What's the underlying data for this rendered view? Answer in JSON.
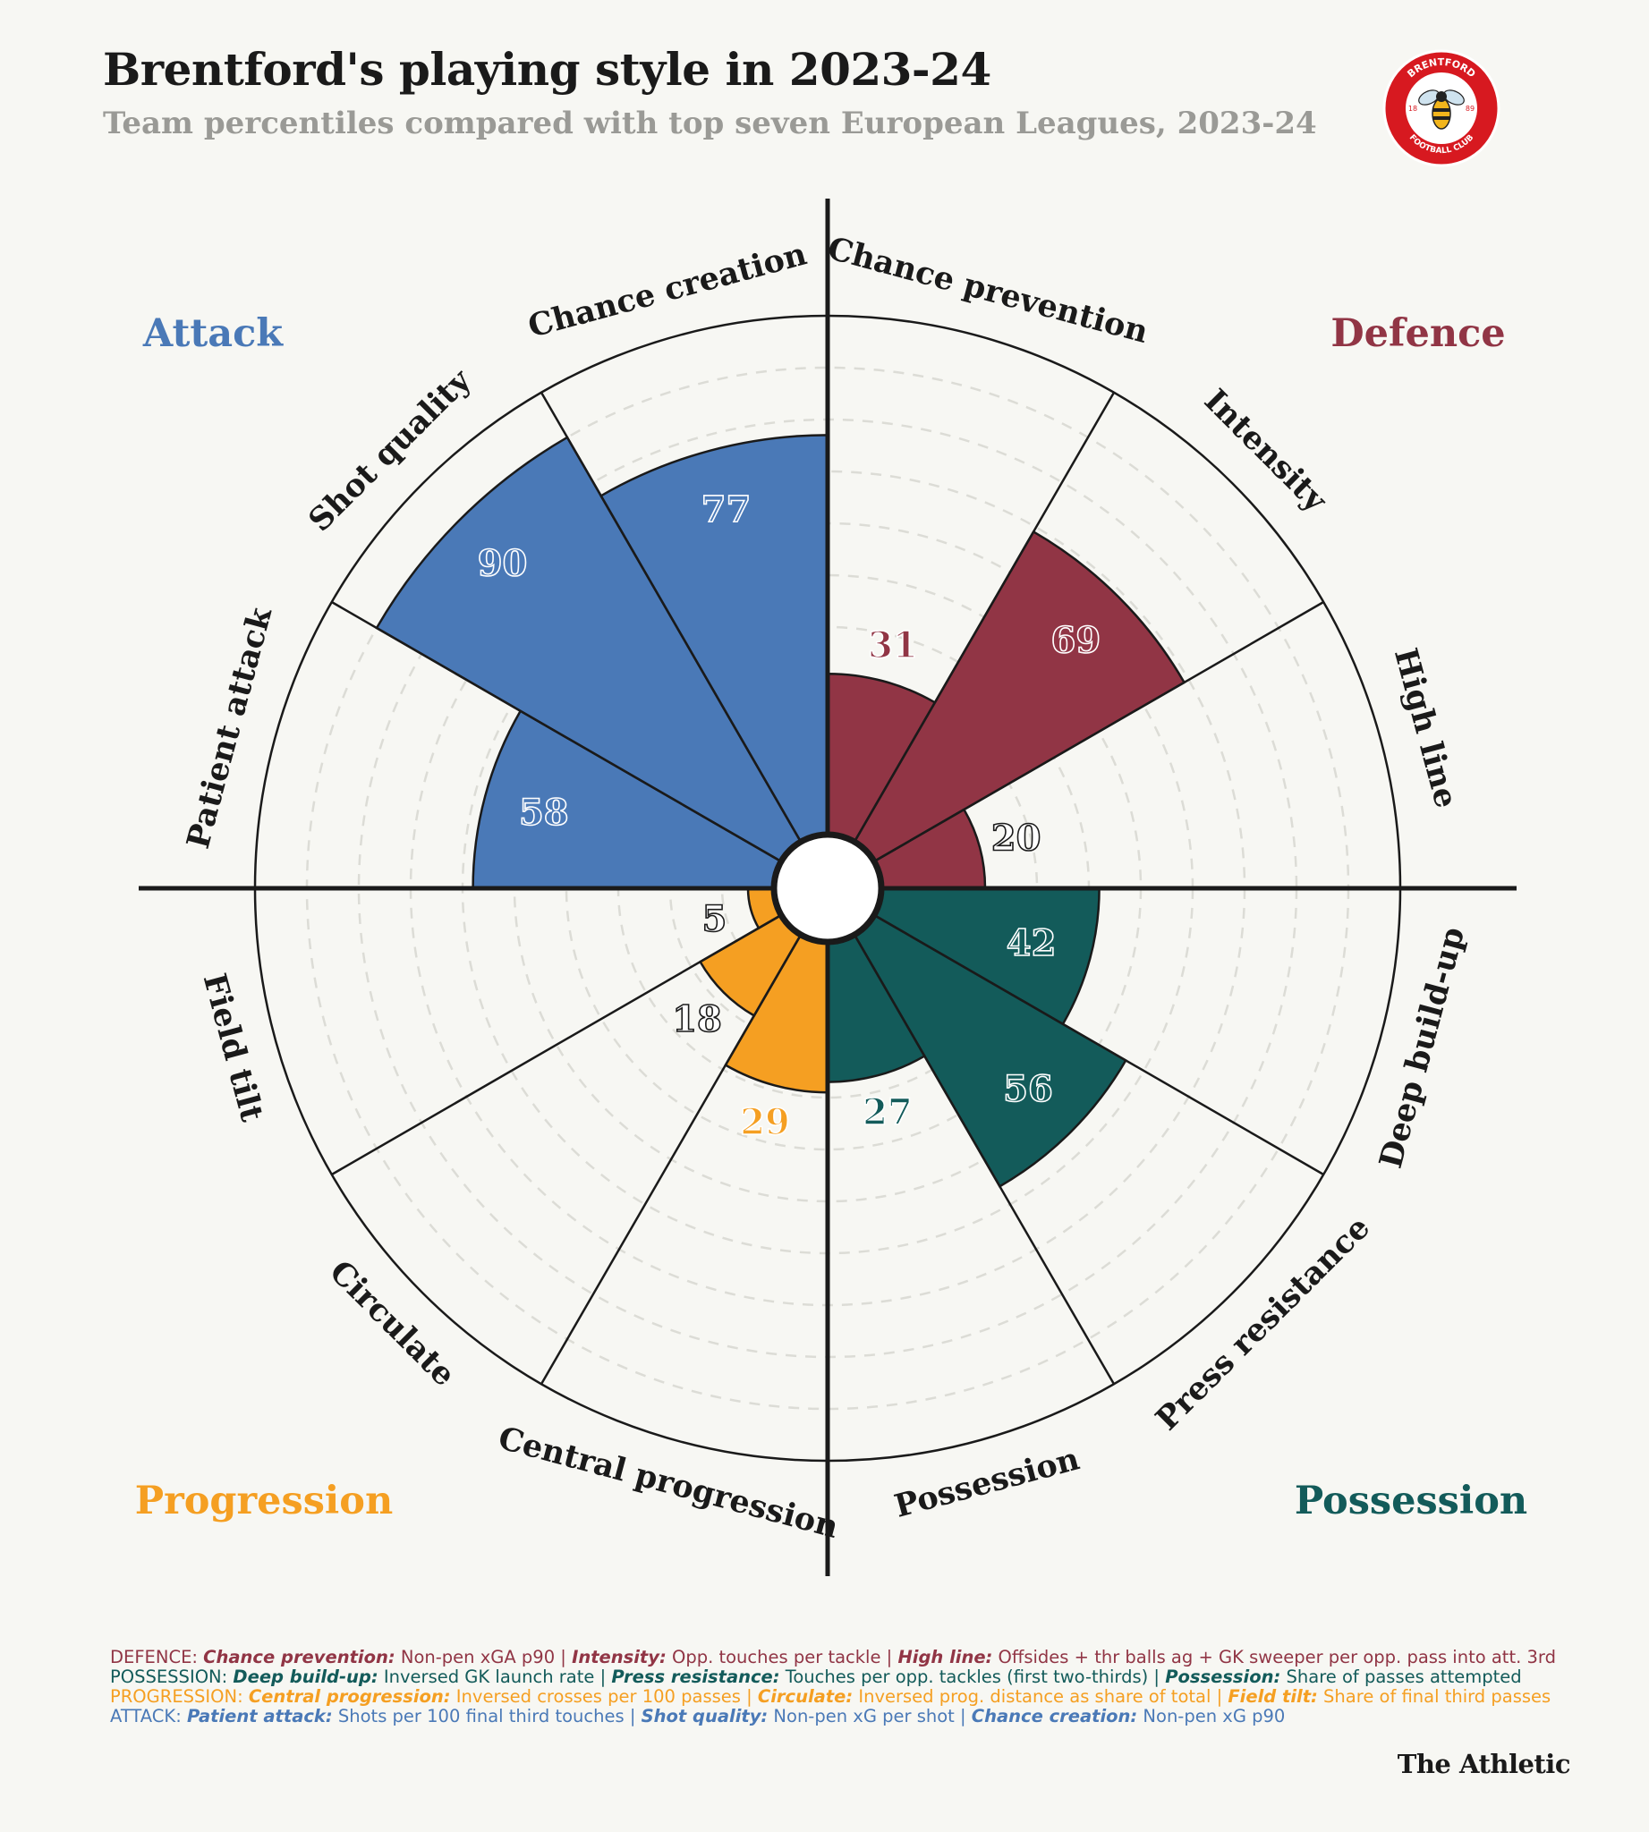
{
  "header": {
    "title": "Brentford's playing style in 2023-24",
    "subtitle": "Team percentiles compared with top seven European Leagues, 2023-24"
  },
  "logo": {
    "top_text": "BRENTFORD",
    "bottom_text": "FOOTBALL CLUB",
    "year_left": "18",
    "year_right": "89"
  },
  "chart_data": {
    "type": "polar-bar",
    "title": "Brentford's playing style in 2023-24",
    "scale": [
      0,
      100
    ],
    "categories_order": "clockwise from 12 o'clock",
    "metrics": [
      {
        "label": "Chance prevention",
        "value": 31,
        "group": "Defence"
      },
      {
        "label": "Intensity",
        "value": 69,
        "group": "Defence"
      },
      {
        "label": "High line",
        "value": 20,
        "group": "Defence"
      },
      {
        "label": "Deep build-up",
        "value": 42,
        "group": "Possession"
      },
      {
        "label": "Press resistance",
        "value": 56,
        "group": "Possession"
      },
      {
        "label": "Possession",
        "value": 27,
        "group": "Possession"
      },
      {
        "label": "Central progression",
        "value": 29,
        "group": "Progression"
      },
      {
        "label": "Circulate",
        "value": 18,
        "group": "Progression"
      },
      {
        "label": "Field tilt",
        "value": 5,
        "group": "Progression"
      },
      {
        "label": "Patient attack",
        "value": 58,
        "group": "Attack"
      },
      {
        "label": "Shot quality",
        "value": 90,
        "group": "Attack"
      },
      {
        "label": "Chance creation",
        "value": 77,
        "group": "Attack"
      }
    ],
    "groups": [
      {
        "name": "Attack",
        "color": "#4a79b7",
        "legend_position": "top-left"
      },
      {
        "name": "Defence",
        "color": "#913545",
        "legend_position": "top-right"
      },
      {
        "name": "Progression",
        "color": "#f59f22",
        "legend_position": "bottom-left"
      },
      {
        "name": "Possession",
        "color": "#135b5a",
        "legend_position": "bottom-right"
      }
    ]
  },
  "footnotes": [
    {
      "color": "#913545",
      "prefix": "DEFENCE: ",
      "parts": [
        {
          "k": "Chance prevention:",
          "v": " Non-pen xGA p90 | "
        },
        {
          "k": "Intensity:",
          "v": " Opp. touches per tackle | "
        },
        {
          "k": "High line:",
          "v": " Offsides + thr balls ag + GK sweeper per opp. pass into att. 3rd"
        }
      ]
    },
    {
      "color": "#135b5a",
      "prefix": "POSSESSION: ",
      "parts": [
        {
          "k": "Deep build-up:",
          "v": " Inversed GK launch rate | "
        },
        {
          "k": "Press resistance:",
          "v": " Touches per opp. tackles (first two-thirds) | "
        },
        {
          "k": "Possession:",
          "v": " Share of passes attempted"
        }
      ]
    },
    {
      "color": "#f59f22",
      "prefix": "PROGRESSION: ",
      "parts": [
        {
          "k": "Central progression:",
          "v": " Inversed crosses per 100 passes | "
        },
        {
          "k": "Circulate:",
          "v": " Inversed prog. distance as share of total | "
        },
        {
          "k": "Field tilt:",
          "v": " Share of final third passes"
        }
      ]
    },
    {
      "color": "#4a79b7",
      "prefix": "ATTACK: ",
      "parts": [
        {
          "k": "Patient attack:",
          "v": " Shots per 100 final third touches | "
        },
        {
          "k": "Shot quality:",
          "v": " Non-pen xG per shot | "
        },
        {
          "k": "Chance creation:",
          "v": " Non-pen xG p90"
        }
      ]
    }
  ],
  "brand": "The Athletic"
}
